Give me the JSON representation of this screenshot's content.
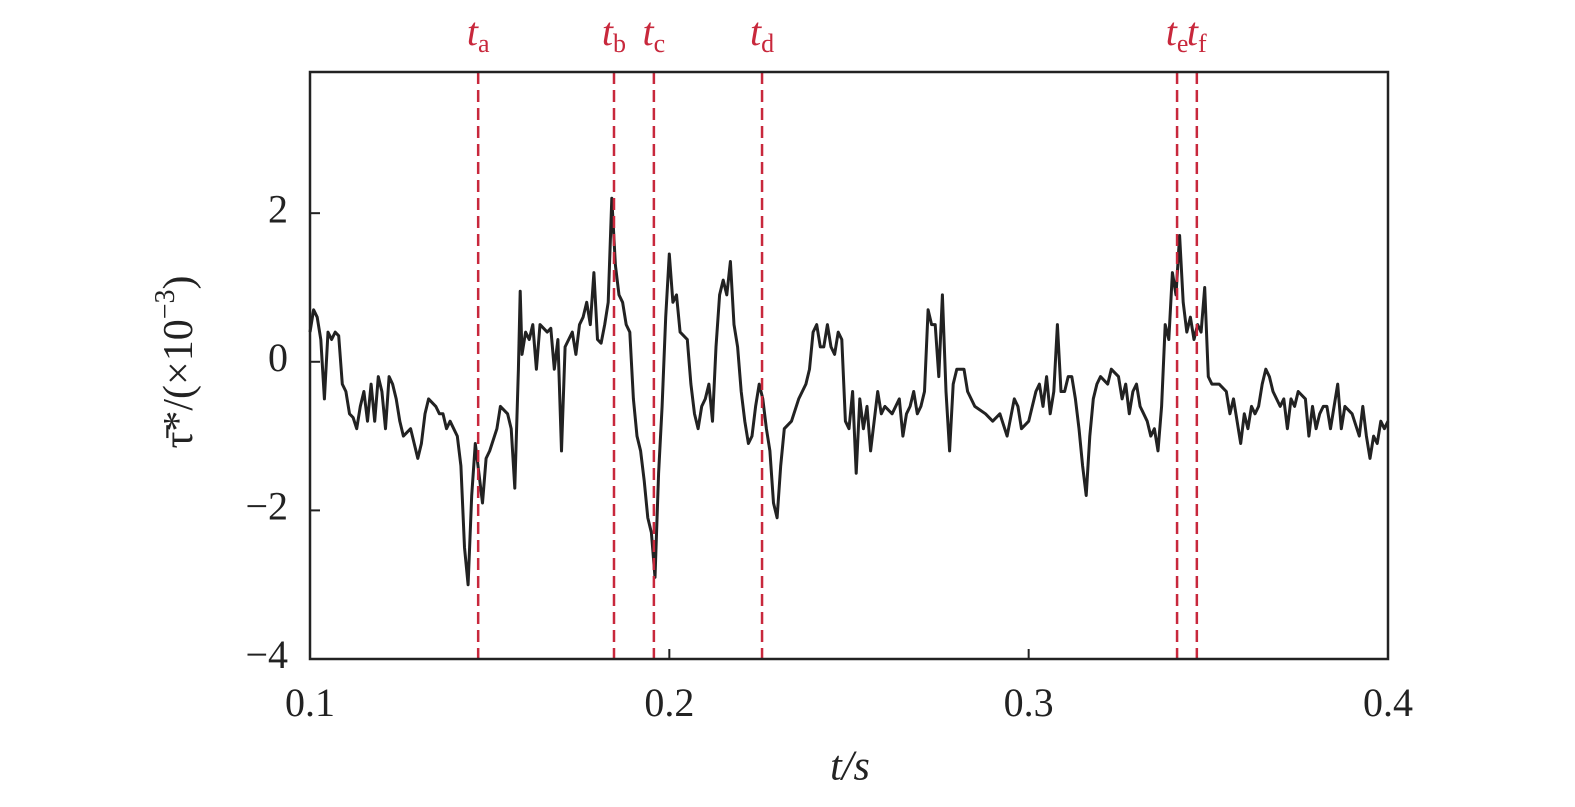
{
  "chart_data": {
    "type": "line",
    "xlabel": "t/s",
    "ylabel": {
      "base": "τ̄*/(×10",
      "exp": "−3",
      "close": ")"
    },
    "xlim": [
      0.1,
      0.4
    ],
    "xticks": [
      0.1,
      0.2,
      0.3,
      0.4
    ],
    "ylim": [
      -4,
      3.9
    ],
    "yticks": [
      {
        "value": -4,
        "label": "−4"
      },
      {
        "value": -2,
        "label": "−2"
      },
      0,
      2
    ],
    "marker_color": "#c8283c",
    "markers": [
      {
        "label": "t",
        "sub": "a",
        "x": 0.1468
      },
      {
        "label": "t",
        "sub": "b",
        "x": 0.1846
      },
      {
        "label": "t",
        "sub": "c",
        "x": 0.1957
      },
      {
        "label": "t",
        "sub": "d",
        "x": 0.2258
      },
      {
        "label": "t",
        "sub": "e",
        "x": 0.3413
      },
      {
        "label": "t",
        "sub": "f",
        "x": 0.3468
      }
    ],
    "x": [
      0.1,
      0.101,
      0.102,
      0.103,
      0.104,
      0.105,
      0.106,
      0.107,
      0.108,
      0.109,
      0.11,
      0.111,
      0.112,
      0.113,
      0.114,
      0.115,
      0.116,
      0.117,
      0.118,
      0.119,
      0.12,
      0.121,
      0.122,
      0.123,
      0.124,
      0.125,
      0.126,
      0.128,
      0.13,
      0.131,
      0.132,
      0.133,
      0.135,
      0.136,
      0.137,
      0.138,
      0.139,
      0.14,
      0.141,
      0.142,
      0.143,
      0.144,
      0.145,
      0.146,
      0.147,
      0.148,
      0.149,
      0.15,
      0.152,
      0.153,
      0.155,
      0.156,
      0.157,
      0.158,
      0.1585,
      0.159,
      0.16,
      0.161,
      0.162,
      0.163,
      0.164,
      0.166,
      0.167,
      0.168,
      0.169,
      0.17,
      0.171,
      0.172,
      0.173,
      0.174,
      0.175,
      0.176,
      0.177,
      0.178,
      0.179,
      0.18,
      0.181,
      0.182,
      0.183,
      0.184,
      0.185,
      0.186,
      0.187,
      0.188,
      0.189,
      0.19,
      0.191,
      0.192,
      0.193,
      0.194,
      0.195,
      0.196,
      0.197,
      0.198,
      0.199,
      0.2,
      0.201,
      0.202,
      0.203,
      0.205,
      0.206,
      0.207,
      0.208,
      0.209,
      0.21,
      0.211,
      0.212,
      0.213,
      0.214,
      0.215,
      0.216,
      0.217,
      0.218,
      0.219,
      0.22,
      0.221,
      0.222,
      0.223,
      0.224,
      0.225,
      0.226,
      0.227,
      0.228,
      0.229,
      0.23,
      0.231,
      0.232,
      0.234,
      0.236,
      0.238,
      0.239,
      0.24,
      0.241,
      0.242,
      0.243,
      0.244,
      0.245,
      0.246,
      0.247,
      0.248,
      0.249,
      0.25,
      0.251,
      0.252,
      0.253,
      0.254,
      0.255,
      0.256,
      0.258,
      0.259,
      0.26,
      0.262,
      0.264,
      0.265,
      0.266,
      0.267,
      0.268,
      0.269,
      0.27,
      0.271,
      0.272,
      0.273,
      0.274,
      0.275,
      0.276,
      0.277,
      0.278,
      0.279,
      0.28,
      0.282,
      0.283,
      0.285,
      0.288,
      0.29,
      0.292,
      0.294,
      0.296,
      0.297,
      0.298,
      0.3,
      0.302,
      0.303,
      0.304,
      0.305,
      0.306,
      0.307,
      0.308,
      0.309,
      0.31,
      0.311,
      0.312,
      0.313,
      0.314,
      0.315,
      0.316,
      0.317,
      0.318,
      0.319,
      0.32,
      0.322,
      0.323,
      0.325,
      0.326,
      0.327,
      0.328,
      0.329,
      0.33,
      0.331,
      0.332,
      0.333,
      0.334,
      0.335,
      0.336,
      0.337,
      0.338,
      0.339,
      0.34,
      0.341,
      0.342,
      0.343,
      0.344,
      0.345,
      0.346,
      0.347,
      0.348,
      0.349,
      0.35,
      0.351,
      0.353,
      0.355,
      0.356,
      0.357,
      0.359,
      0.36,
      0.361,
      0.362,
      0.363,
      0.364,
      0.365,
      0.366,
      0.367,
      0.368,
      0.37,
      0.371,
      0.372,
      0.373,
      0.374,
      0.375,
      0.377,
      0.378,
      0.379,
      0.38,
      0.381,
      0.382,
      0.383,
      0.384,
      0.385,
      0.386,
      0.387,
      0.388,
      0.39,
      0.392,
      0.393,
      0.394,
      0.395,
      0.396,
      0.397,
      0.398,
      0.399,
      0.4
    ],
    "series": [
      {
        "color": "#222222",
        "values": [
          0.4,
          0.7,
          0.6,
          0.3,
          -0.5,
          0.4,
          0.3,
          0.4,
          0.35,
          -0.3,
          -0.4,
          -0.7,
          -0.75,
          -0.9,
          -0.6,
          -0.4,
          -0.8,
          -0.3,
          -0.8,
          -0.2,
          -0.4,
          -0.9,
          -0.2,
          -0.3,
          -0.5,
          -0.8,
          -1.0,
          -0.9,
          -1.3,
          -1.1,
          -0.7,
          -0.5,
          -0.6,
          -0.7,
          -0.7,
          -0.9,
          -0.8,
          -0.9,
          -1.0,
          -1.4,
          -2.5,
          -3.0,
          -1.8,
          -1.1,
          -1.5,
          -1.9,
          -1.3,
          -1.2,
          -0.9,
          -0.6,
          -0.7,
          -0.9,
          -1.7,
          -0.1,
          0.95,
          0.1,
          0.4,
          0.3,
          0.5,
          -0.1,
          0.5,
          0.4,
          0.45,
          -0.1,
          0.3,
          -1.2,
          0.2,
          0.3,
          0.4,
          0.1,
          0.5,
          0.6,
          0.8,
          0.5,
          1.2,
          0.3,
          0.25,
          0.5,
          0.8,
          2.2,
          1.3,
          0.9,
          0.8,
          0.5,
          0.4,
          -0.5,
          -1.0,
          -1.2,
          -1.6,
          -2.1,
          -2.3,
          -2.9,
          -1.5,
          -0.6,
          0.6,
          1.45,
          0.8,
          0.9,
          0.4,
          0.3,
          -0.3,
          -0.7,
          -0.9,
          -0.6,
          -0.5,
          -0.3,
          -0.8,
          0.2,
          0.9,
          1.1,
          0.9,
          1.35,
          0.5,
          0.2,
          -0.4,
          -0.8,
          -1.1,
          -1.0,
          -0.6,
          -0.3,
          -0.5,
          -0.9,
          -1.2,
          -1.9,
          -2.1,
          -1.4,
          -0.9,
          -0.8,
          -0.5,
          -0.3,
          -0.1,
          0.4,
          0.5,
          0.2,
          0.2,
          0.5,
          0.2,
          0.1,
          0.4,
          0.3,
          -0.8,
          -0.9,
          -0.4,
          -1.5,
          -0.5,
          -0.9,
          -0.6,
          -1.2,
          -0.4,
          -0.7,
          -0.6,
          -0.7,
          -0.5,
          -1.0,
          -0.7,
          -0.6,
          -0.4,
          -0.7,
          -0.6,
          -0.4,
          0.7,
          0.5,
          0.5,
          -0.2,
          0.9,
          -0.4,
          -1.2,
          -0.3,
          -0.1,
          -0.1,
          -0.4,
          -0.6,
          -0.7,
          -0.8,
          -0.7,
          -1.0,
          -0.5,
          -0.6,
          -0.9,
          -0.8,
          -0.4,
          -0.3,
          -0.6,
          -0.2,
          -0.7,
          -0.4,
          0.5,
          -0.4,
          -0.4,
          -0.2,
          -0.2,
          -0.5,
          -0.9,
          -1.4,
          -1.8,
          -1.0,
          -0.5,
          -0.3,
          -0.2,
          -0.3,
          -0.1,
          -0.2,
          -0.5,
          -0.3,
          -0.7,
          -0.4,
          -0.3,
          -0.6,
          -0.7,
          -0.8,
          -1.0,
          -0.9,
          -1.2,
          -0.6,
          0.5,
          0.3,
          1.2,
          0.9,
          1.7,
          0.8,
          0.4,
          0.6,
          0.3,
          0.5,
          0.4,
          1.0,
          -0.2,
          -0.3,
          -0.3,
          -0.4,
          -0.7,
          -0.5,
          -1.1,
          -0.7,
          -0.9,
          -0.6,
          -0.7,
          -0.6,
          -0.3,
          -0.1,
          -0.2,
          -0.4,
          -0.6,
          -0.5,
          -0.9,
          -0.5,
          -0.6,
          -0.4,
          -0.5,
          -1.0,
          -0.6,
          -0.9,
          -0.7,
          -0.6,
          -0.6,
          -0.9,
          -0.6,
          -0.3,
          -0.9,
          -0.6,
          -0.7,
          -1.0,
          -0.6,
          -1.0,
          -1.3,
          -1.0,
          -1.1,
          -0.8,
          -0.9,
          -0.8
        ]
      }
    ]
  }
}
